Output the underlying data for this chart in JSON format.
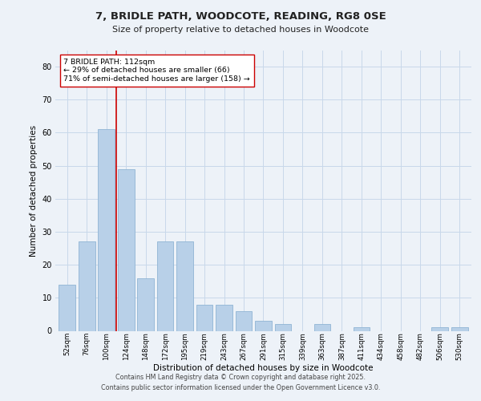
{
  "title_line1": "7, BRIDLE PATH, WOODCOTE, READING, RG8 0SE",
  "title_line2": "Size of property relative to detached houses in Woodcote",
  "xlabel": "Distribution of detached houses by size in Woodcote",
  "ylabel": "Number of detached properties",
  "categories": [
    "52sqm",
    "76sqm",
    "100sqm",
    "124sqm",
    "148sqm",
    "172sqm",
    "195sqm",
    "219sqm",
    "243sqm",
    "267sqm",
    "291sqm",
    "315sqm",
    "339sqm",
    "363sqm",
    "387sqm",
    "411sqm",
    "434sqm",
    "458sqm",
    "482sqm",
    "506sqm",
    "530sqm"
  ],
  "values": [
    14,
    27,
    61,
    49,
    16,
    27,
    27,
    8,
    8,
    6,
    3,
    2,
    0,
    2,
    0,
    1,
    0,
    0,
    0,
    1,
    1
  ],
  "bar_color": "#b8d0e8",
  "bar_edge_color": "#90b4d4",
  "grid_color": "#c8d8ea",
  "background_color": "#edf2f8",
  "vline_x": 2.5,
  "vline_color": "#cc0000",
  "annotation_text": "7 BRIDLE PATH: 112sqm\n← 29% of detached houses are smaller (66)\n71% of semi-detached houses are larger (158) →",
  "annotation_box_color": "#ffffff",
  "annotation_box_edge": "#cc0000",
  "ylim": [
    0,
    85
  ],
  "yticks": [
    0,
    10,
    20,
    30,
    40,
    50,
    60,
    70,
    80
  ],
  "footer_line1": "Contains HM Land Registry data © Crown copyright and database right 2025.",
  "footer_line2": "Contains public sector information licensed under the Open Government Licence v3.0."
}
